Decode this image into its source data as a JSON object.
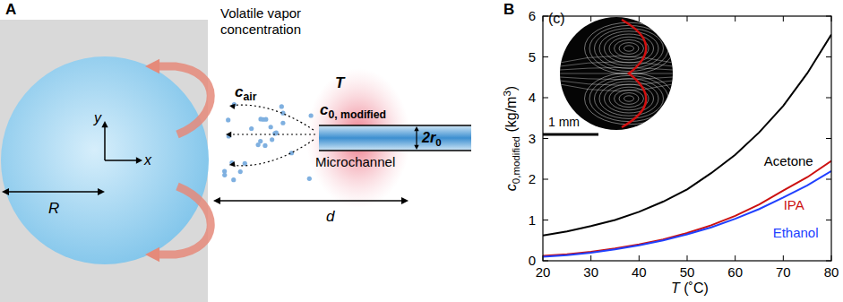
{
  "diagram": {
    "label": "A",
    "vapor_title": [
      "Volatile vapor",
      "concentration"
    ],
    "radius_label": "R",
    "distance_label": "d",
    "temperature_label": "T",
    "channel_label": "Microchannel",
    "axis_x": "x",
    "axis_y": "y",
    "c_air": {
      "base": "c",
      "sub": "air"
    },
    "c_source": {
      "base": "c",
      "sub": "0, modified"
    },
    "channel_radius": {
      "base": "2r",
      "sub": "0"
    }
  },
  "chart_data": {
    "type": "line",
    "panel_label": "B",
    "x": [
      20,
      25,
      30,
      35,
      40,
      45,
      50,
      55,
      60,
      65,
      70,
      75,
      80
    ],
    "series": [
      {
        "name": "Acetone",
        "color": "#000000",
        "values": [
          0.62,
          0.72,
          0.85,
          1.0,
          1.2,
          1.45,
          1.75,
          2.15,
          2.6,
          3.15,
          3.8,
          4.6,
          5.55
        ]
      },
      {
        "name": "IPA",
        "color": "#cc1111",
        "values": [
          0.12,
          0.16,
          0.22,
          0.3,
          0.4,
          0.52,
          0.68,
          0.87,
          1.1,
          1.38,
          1.72,
          2.05,
          2.45
        ]
      },
      {
        "name": "Ethanol",
        "color": "#2040ff",
        "values": [
          0.1,
          0.14,
          0.2,
          0.28,
          0.38,
          0.5,
          0.65,
          0.82,
          1.03,
          1.27,
          1.55,
          1.85,
          2.2
        ]
      }
    ],
    "xlim": [
      20,
      80
    ],
    "xticks": [
      20,
      30,
      40,
      50,
      60,
      70,
      80
    ],
    "ylim": [
      0,
      6
    ],
    "yticks": [
      0,
      1,
      2,
      3,
      4,
      5,
      6
    ],
    "xlabel": {
      "var": "T",
      "unit": " (˚C)"
    },
    "ylabel": {
      "base": "c",
      "sub": "0,modified",
      "unit": " (kg/m",
      "sup": "3",
      "close": ")"
    },
    "inset": {
      "label": "(c)",
      "scale_bar": "1 mm"
    },
    "grid": false
  }
}
